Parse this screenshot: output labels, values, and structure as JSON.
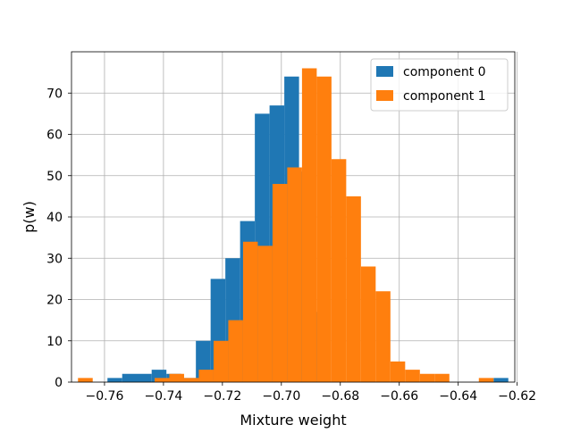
{
  "chart_data": {
    "type": "bar",
    "title": "",
    "xlabel": "Mixture weight",
    "ylabel": "p(w)",
    "xlim": [
      -0.7712,
      -0.6208
    ],
    "ylim": [
      0,
      80
    ],
    "xticks": [
      -0.76,
      -0.74,
      -0.72,
      -0.7,
      -0.68,
      -0.66,
      -0.64,
      -0.62
    ],
    "xtick_labels": [
      "−0.76",
      "−0.74",
      "−0.72",
      "−0.70",
      "−0.68",
      "−0.66",
      "−0.64",
      "−0.62"
    ],
    "yticks": [
      0,
      10,
      20,
      30,
      40,
      50,
      60,
      70
    ],
    "ytick_labels": [
      "0",
      "10",
      "20",
      "30",
      "40",
      "50",
      "60",
      "70"
    ],
    "grid": true,
    "legend_position": "top-right",
    "series": [
      {
        "name": "component 0",
        "color": "#1f77b4",
        "bins": [
          {
            "x0": -0.759,
            "x1": -0.754,
            "value": 1
          },
          {
            "x0": -0.754,
            "x1": -0.744,
            "value": 2
          },
          {
            "x0": -0.744,
            "x1": -0.739,
            "value": 3
          },
          {
            "x0": -0.739,
            "x1": -0.734,
            "value": 2
          },
          {
            "x0": -0.734,
            "x1": -0.729,
            "value": 1
          },
          {
            "x0": -0.729,
            "x1": -0.724,
            "value": 10
          },
          {
            "x0": -0.724,
            "x1": -0.719,
            "value": 25
          },
          {
            "x0": -0.719,
            "x1": -0.714,
            "value": 30
          },
          {
            "x0": -0.714,
            "x1": -0.709,
            "value": 39
          },
          {
            "x0": -0.709,
            "x1": -0.704,
            "value": 65
          },
          {
            "x0": -0.704,
            "x1": -0.699,
            "value": 67
          },
          {
            "x0": -0.699,
            "x1": -0.694,
            "value": 74
          },
          {
            "x0": -0.694,
            "x1": -0.689,
            "value": 51
          },
          {
            "x0": -0.689,
            "x1": -0.684,
            "value": 17
          },
          {
            "x0": -0.628,
            "x1": -0.623,
            "value": 1
          }
        ]
      },
      {
        "name": "component 1",
        "color": "#ff7f0e",
        "bins": [
          {
            "x0": -0.769,
            "x1": -0.764,
            "value": 1
          },
          {
            "x0": -0.743,
            "x1": -0.738,
            "value": 1
          },
          {
            "x0": -0.738,
            "x1": -0.733,
            "value": 2
          },
          {
            "x0": -0.733,
            "x1": -0.728,
            "value": 1
          },
          {
            "x0": -0.728,
            "x1": -0.723,
            "value": 3
          },
          {
            "x0": -0.723,
            "x1": -0.718,
            "value": 10
          },
          {
            "x0": -0.718,
            "x1": -0.713,
            "value": 15
          },
          {
            "x0": -0.713,
            "x1": -0.708,
            "value": 34
          },
          {
            "x0": -0.708,
            "x1": -0.703,
            "value": 33
          },
          {
            "x0": -0.703,
            "x1": -0.698,
            "value": 48
          },
          {
            "x0": -0.698,
            "x1": -0.693,
            "value": 52
          },
          {
            "x0": -0.693,
            "x1": -0.688,
            "value": 76
          },
          {
            "x0": -0.688,
            "x1": -0.683,
            "value": 74
          },
          {
            "x0": -0.683,
            "x1": -0.678,
            "value": 54
          },
          {
            "x0": -0.678,
            "x1": -0.673,
            "value": 45
          },
          {
            "x0": -0.673,
            "x1": -0.668,
            "value": 28
          },
          {
            "x0": -0.668,
            "x1": -0.663,
            "value": 22
          },
          {
            "x0": -0.663,
            "x1": -0.658,
            "value": 5
          },
          {
            "x0": -0.658,
            "x1": -0.653,
            "value": 3
          },
          {
            "x0": -0.653,
            "x1": -0.648,
            "value": 2
          },
          {
            "x0": -0.648,
            "x1": -0.643,
            "value": 2
          },
          {
            "x0": -0.633,
            "x1": -0.628,
            "value": 1
          }
        ]
      }
    ]
  }
}
